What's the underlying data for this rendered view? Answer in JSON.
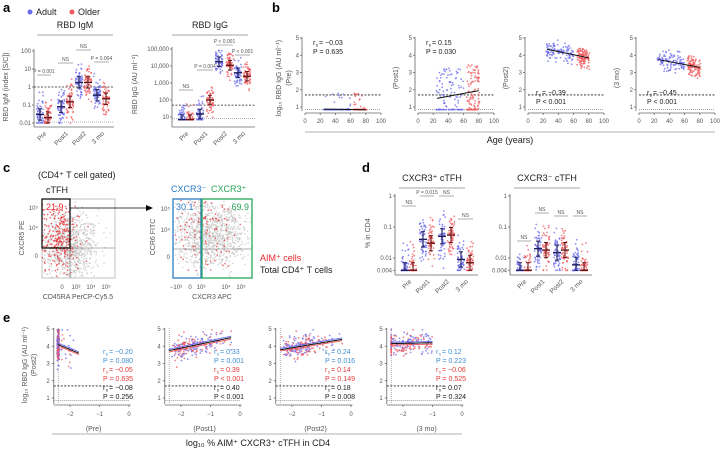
{
  "panel_labels": {
    "a": "a",
    "b": "b",
    "c": "c",
    "d": "d",
    "e": "e"
  },
  "legend": {
    "adult": "Adult",
    "older": "Older"
  },
  "colors": {
    "adult": "#6b6bef",
    "older": "#f0585c",
    "adult_median": "#1c1c5e",
    "older_median": "#6a1414",
    "stat_adult": "#3f8fd2",
    "stat_older": "#e43a3a",
    "stat_all": "#222222",
    "flow_total": "#c8c8c8",
    "flow_aim": "#e8282e",
    "gate_neg": "#2a7bc4",
    "gate_pos": "#2aa65a"
  },
  "stat_symbol": "r",
  "stat_sub": "s",
  "chart_data": [
    {
      "panel": "a",
      "type": "scatter",
      "title": "RBD IgM",
      "ylabel": "RBD IgM (index [S/C])",
      "yscale": "log",
      "ylim": [
        0.01,
        100
      ],
      "yticks": [
        "0.01",
        "0.1",
        "1",
        "10",
        "100"
      ],
      "ytick_values": [
        0.01,
        0.1,
        1,
        10,
        100
      ],
      "categories": [
        "Pre",
        "Post1",
        "Post2",
        "3 mo"
      ],
      "series": [
        {
          "name": "Adult",
          "median": [
            0.03,
            0.08,
            1.8,
            0.35
          ]
        },
        {
          "name": "Older",
          "median": [
            0.02,
            0.15,
            1.8,
            0.22
          ]
        }
      ],
      "annotations": [
        "P = 0.001",
        "NS",
        "NS",
        "P = 0.004"
      ],
      "threshold_dashed": 1,
      "threshold_dotted": 0.01
    },
    {
      "panel": "a",
      "type": "scatter",
      "title": "RBD IgG",
      "ylabel": "RBD IgG (AU ml⁻¹)",
      "yscale": "log",
      "ylim": [
        7,
        100000
      ],
      "yticks": [
        "10",
        "100",
        "1,000",
        "10,000",
        "100,000"
      ],
      "ytick_values": [
        10,
        100,
        1000,
        10000,
        100000
      ],
      "categories": [
        "Pre",
        "Post1",
        "Post2",
        "3 mo"
      ],
      "series": [
        {
          "name": "Adult",
          "median": [
            7,
            15,
            18000,
            4000
          ]
        },
        {
          "name": "Older",
          "median": [
            7,
            100,
            11000,
            2500
          ]
        }
      ],
      "annotations": [
        "NS",
        "P = 0.004",
        "P < 0.001",
        "P < 0.001"
      ],
      "threshold_dashed": 50,
      "threshold_dotted": 7
    },
    {
      "panel": "b",
      "type": "scatter",
      "ylabel": "log₁₀ RBD IgG (AU ml⁻¹)",
      "xlabel": "Age (years)",
      "xlim": [
        0,
        100
      ],
      "ylim": [
        0.8,
        5
      ],
      "xticks": [
        "0",
        "20",
        "40",
        "60",
        "80",
        "100"
      ],
      "yticks": [
        "1",
        "2",
        "3",
        "4",
        "5"
      ],
      "threshold_dashed": 1.7,
      "threshold_dotted": 0.85,
      "subplots": [
        {
          "label": "(Pre)",
          "r": "= −0.03",
          "p": "P = 0.635",
          "fit": [
            [
              25,
              0.88
            ],
            [
              80,
              0.84
            ]
          ]
        },
        {
          "label": "(Post1)",
          "r": "= 0.15",
          "p": "P = 0.030",
          "fit": [
            [
              25,
              1.5
            ],
            [
              80,
              1.95
            ]
          ]
        },
        {
          "label": "(Post2)",
          "r": "= −0.39",
          "p": "P < 0.001",
          "fit": [
            [
              25,
              4.35
            ],
            [
              80,
              3.85
            ]
          ]
        },
        {
          "label": "(3 mo)",
          "r": "= −0.45",
          "p": "P < 0.001",
          "fit": [
            [
              25,
              3.75
            ],
            [
              80,
              3.3
            ]
          ]
        }
      ]
    },
    {
      "panel": "c",
      "type": "flow-cytometry",
      "gate_title": "(CD4⁺ T cell gated)",
      "subset_label": "cTFH",
      "plot1": {
        "xlabel": "CD45RA PerCP-Cy5.5",
        "ylabel": "CXCR5 PE",
        "gate_percent": "21.9",
        "xticks": [
          "0",
          "10³",
          "10⁴",
          "10⁵"
        ],
        "yticks": [
          "0",
          "10⁴",
          "10⁵"
        ]
      },
      "plot2": {
        "xlabel": "CXCR3 APC",
        "ylabel": "CCR6 FITC",
        "gates": [
          {
            "label": "CXCR3⁻",
            "percent": "30.1"
          },
          {
            "label": "CXCR3⁺",
            "percent": "69.9"
          }
        ],
        "xticks": [
          "−10³",
          "0",
          "10³",
          "10⁴",
          "10⁵"
        ],
        "yticks": [
          "0",
          "10⁴",
          "10⁵"
        ]
      },
      "legend": {
        "aim": "AIM⁺ cells",
        "total": "Total CD4⁺ T cells"
      }
    },
    {
      "panel": "d",
      "type": "scatter",
      "title": "CXCR3⁺ cTFH",
      "ylabel": "% in CD4",
      "yscale": "log",
      "ylim": [
        0.004,
        1
      ],
      "yticks": [
        "0.004",
        "0.01",
        "0.1",
        "1"
      ],
      "ytick_values": [
        0.004,
        0.01,
        0.1,
        1
      ],
      "categories": [
        "Pre",
        "Post1",
        "Post2",
        "3 mo"
      ],
      "series": [
        {
          "name": "Adult",
          "median": [
            0.004,
            0.04,
            0.05,
            0.009
          ]
        },
        {
          "name": "Older",
          "median": [
            0.004,
            0.03,
            0.055,
            0.007
          ]
        }
      ],
      "annotations": [
        "NS",
        "P = 0.015",
        "NS",
        "NS"
      ]
    },
    {
      "panel": "d",
      "type": "scatter",
      "title": "CXCR3⁻ cTFH",
      "yscale": "log",
      "ylim": [
        0.004,
        1
      ],
      "yticks": [
        "0.004",
        "0.01",
        "0.1",
        "1"
      ],
      "ytick_values": [
        0.004,
        0.01,
        0.1,
        1
      ],
      "categories": [
        "Pre",
        "Post1",
        "Post2",
        "3 mo"
      ],
      "series": [
        {
          "name": "Adult",
          "median": [
            0.004,
            0.02,
            0.015,
            0.006
          ]
        },
        {
          "name": "Older",
          "median": [
            0.004,
            0.018,
            0.018,
            0.004
          ]
        }
      ],
      "annotations": [
        "NS",
        "NS",
        "NS",
        "NS"
      ]
    },
    {
      "panel": "e",
      "type": "scatter",
      "ylabel": "log₁₀ RBD IgG (AU ml⁻¹)",
      "ylabel2": "(Post2)",
      "xlabel": "log₁₀ % AIM⁺ CXCR3⁺ cTFH in CD4",
      "xlim": [
        -2.5,
        0
      ],
      "ylim": [
        0.8,
        5
      ],
      "xticks": [
        "−2",
        "−1",
        "0"
      ],
      "yticks": [
        "1",
        "2",
        "3",
        "4",
        "5"
      ],
      "threshold_dashed": 1.7,
      "threshold_dotted": 0.85,
      "limit_x": -2.4,
      "subplots": [
        {
          "label": "(Pre)",
          "fit": [
            [
              -2.4,
              4.1
            ],
            [
              -1.7,
              3.6
            ]
          ],
          "stats": [
            {
              "group": "Adult",
              "r": "= −0.20",
              "p": "P = 0.080"
            },
            {
              "group": "Older",
              "r": "= −0.05",
              "p": "P = 0.635"
            },
            {
              "group": "All",
              "r": "= −0.08",
              "p": "P = 0.256"
            }
          ]
        },
        {
          "label": "(Post1)",
          "fit": [
            [
              -2.4,
              3.75
            ],
            [
              -0.3,
              4.5
            ]
          ],
          "stats": [
            {
              "group": "Adult",
              "r": "= 0.33",
              "p": "P = 0.001"
            },
            {
              "group": "Older",
              "r": "= 0.39",
              "p": "P < 0.001"
            },
            {
              "group": "All",
              "r": "= 0.40",
              "p": "P < 0.001"
            }
          ]
        },
        {
          "label": "(Post2)",
          "fit": [
            [
              -2.4,
              3.8
            ],
            [
              -0.3,
              4.4
            ]
          ],
          "stats": [
            {
              "group": "Adult",
              "r": "= 0.24",
              "p": "P = 0.016"
            },
            {
              "group": "Older",
              "r": "= 0.14",
              "p": "P = 0.149"
            },
            {
              "group": "All",
              "r": "= 0.18",
              "p": "P = 0.008"
            }
          ]
        },
        {
          "label": "(3 mo)",
          "fit": [
            [
              -2.4,
              4.15
            ],
            [
              -1.0,
              4.2
            ]
          ],
          "stats": [
            {
              "group": "Adult",
              "r": "= 0.12",
              "p": "P = 0.223"
            },
            {
              "group": "Older",
              "r": "= −0.06",
              "p": "P = 0.525"
            },
            {
              "group": "All",
              "r": "= 0.07",
              "p": "P = 0.324"
            }
          ]
        }
      ]
    }
  ]
}
